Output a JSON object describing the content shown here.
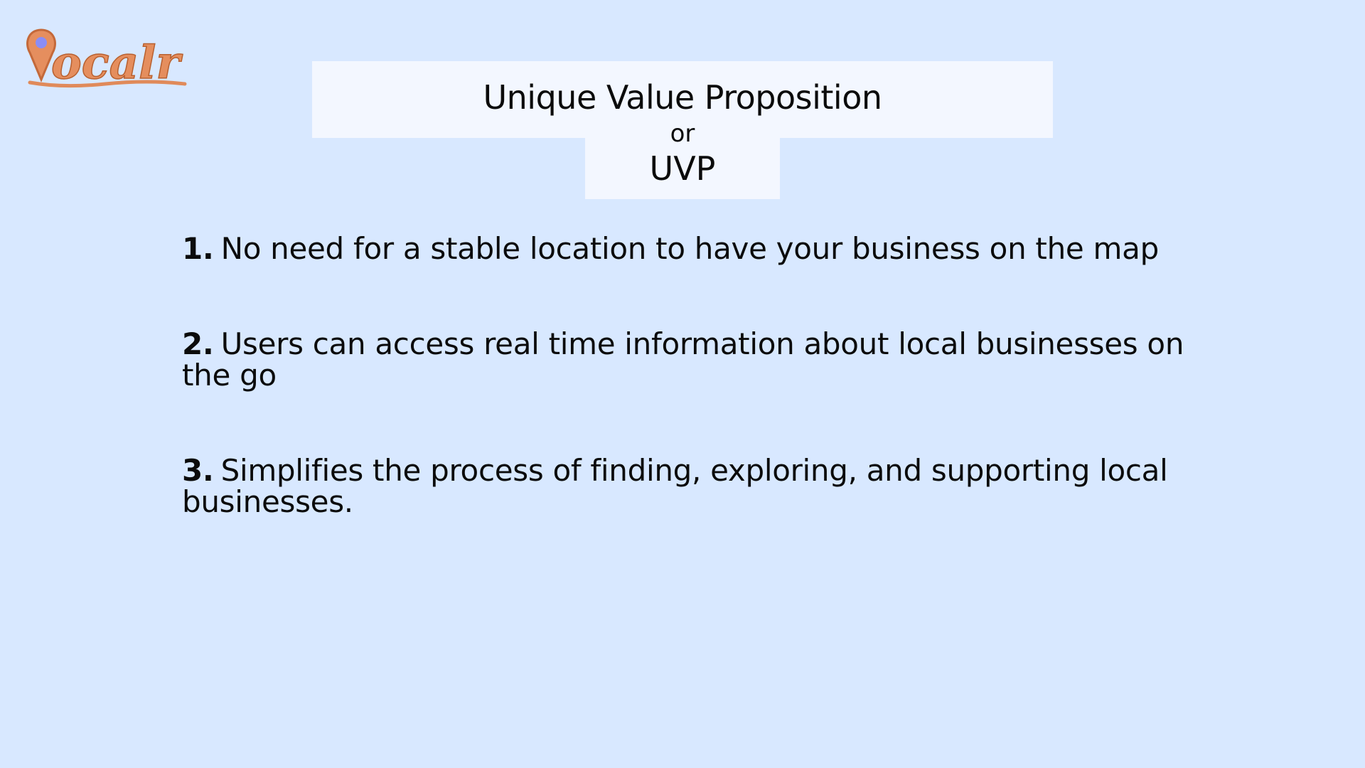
{
  "logo": {
    "text": "localr",
    "pin_color": "#7b7cf0",
    "brand_color": "#e08a5a"
  },
  "title": {
    "line1": "Unique Value Proposition",
    "line2": "or",
    "line3": "UVP"
  },
  "points": [
    {
      "number": "1.",
      "text": "No need for a stable location to have your business on the map"
    },
    {
      "number": "2.",
      "text": "Users can access real time information about local businesses on the go"
    },
    {
      "number": "3.",
      "text": "Simplifies the process of finding, exploring, and supporting local businesses."
    }
  ]
}
